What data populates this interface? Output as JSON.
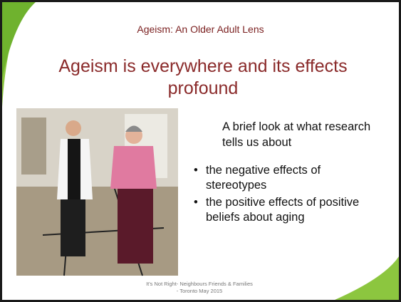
{
  "slide": {
    "subtitle": "Ageism: An Older Adult Lens",
    "title": "Ageism is everywhere and its effects profound",
    "intro": "A brief look at what research tells us about",
    "bullets": [
      "the negative effects of stereotypes",
      "the positive effects of positive beliefs about aging"
    ],
    "footer": "It's Not Right- Neighbours Friends & Families - Toronto May 2015"
  }
}
